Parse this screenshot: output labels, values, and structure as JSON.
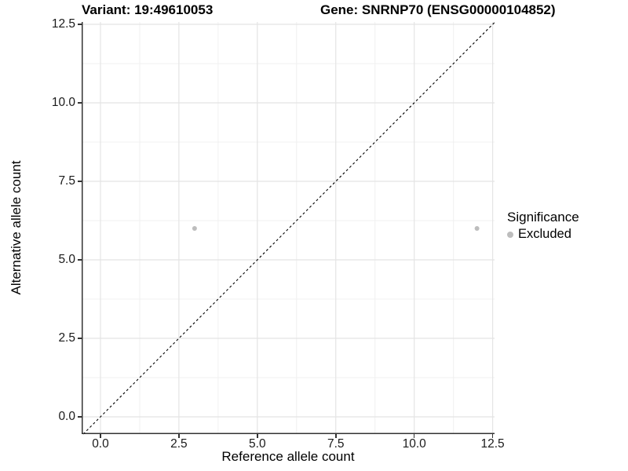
{
  "figure": {
    "title_variant": "Variant: 19:49610053",
    "title_gene": "Gene: SNRNP70 (ENSG00000104852)"
  },
  "chart_data": {
    "type": "scatter",
    "title": "Variant: 19:49610053 — Gene: SNRNP70 (ENSG00000104852)",
    "xlabel": "Reference allele count",
    "ylabel": "Alternative allele count",
    "xlim": [
      -0.6,
      12.56
    ],
    "ylim": [
      -0.55,
      12.575
    ],
    "x_ticks": {
      "values": [
        0,
        2.5,
        5,
        7.5,
        10,
        12.5
      ],
      "labels": [
        "0.0",
        "2.5",
        "5.0",
        "7.5",
        "10.0",
        "12.5"
      ]
    },
    "y_ticks": {
      "values": [
        0,
        2.5,
        5,
        7.5,
        10,
        12.5
      ],
      "labels": [
        "0.0",
        "2.5",
        "5.0",
        "7.5",
        "10.0",
        "12.5"
      ]
    },
    "minor_ticks": [
      1.25,
      3.75,
      6.25,
      8.75,
      11.25
    ],
    "grid": true,
    "reference_line": {
      "kind": "diagonal y=x",
      "style": "dashed",
      "color": "#000000"
    },
    "series": [
      {
        "name": "Excluded",
        "color": "#bdbdbd",
        "points": [
          {
            "x": 3,
            "y": 6
          },
          {
            "x": 12,
            "y": 6
          }
        ]
      }
    ],
    "legend": {
      "position": "right",
      "title": "Significance",
      "entries": [
        {
          "label": "Excluded",
          "color": "#bdbdbd"
        }
      ]
    }
  },
  "colors": {
    "background": "#ffffff",
    "axis_line": "#333333",
    "grid_major": "#e4e4e4",
    "grid_minor": "#f0f0f0",
    "point": "#bdbdbd",
    "dashed_line": "#000000",
    "text": "#000000"
  }
}
